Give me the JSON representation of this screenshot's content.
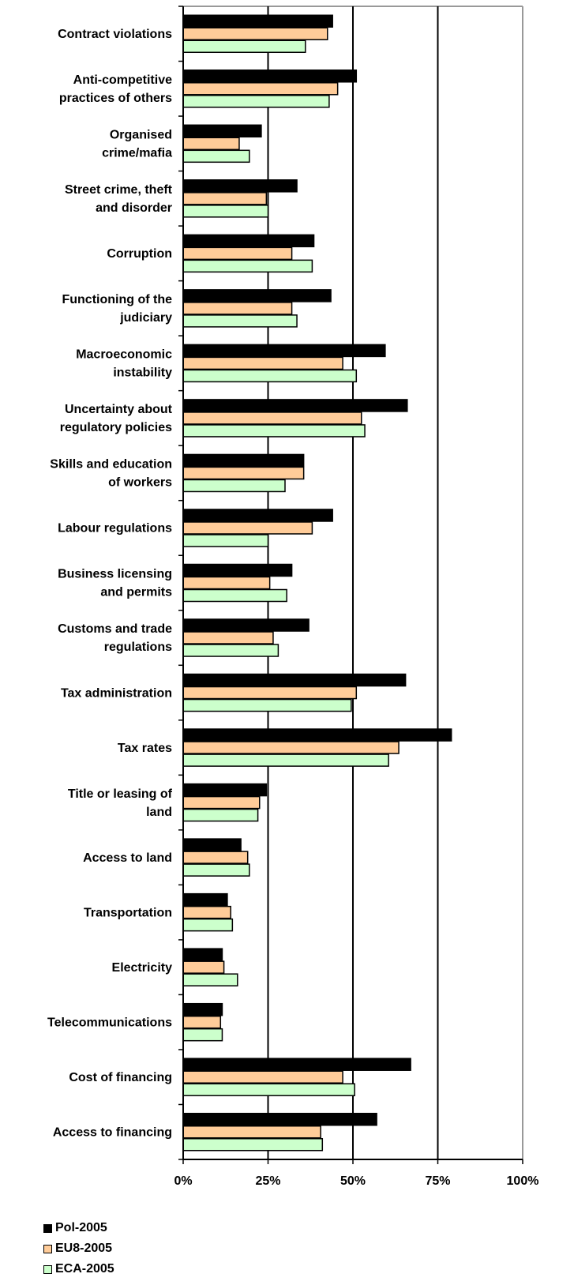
{
  "chart_data": {
    "type": "bar",
    "orientation": "horizontal",
    "categories": [
      [
        "Contract violations"
      ],
      [
        "Anti-competitive",
        "practices of others"
      ],
      [
        "Organised",
        "crime/mafia"
      ],
      [
        "Street crime, theft",
        "and disorder"
      ],
      [
        "Corruption"
      ],
      [
        "Functioning of the",
        "judiciary"
      ],
      [
        "Macroeconomic",
        "instability"
      ],
      [
        "Uncertainty about",
        "regulatory policies"
      ],
      [
        "Skills and education",
        "of workers"
      ],
      [
        "Labour regulations"
      ],
      [
        "Business licensing",
        "and permits"
      ],
      [
        "Customs and trade",
        "regulations"
      ],
      [
        "Tax administration"
      ],
      [
        "Tax rates"
      ],
      [
        "Title or leasing of",
        "land"
      ],
      [
        "Access to land"
      ],
      [
        "Transportation"
      ],
      [
        "Electricity"
      ],
      [
        "Telecommunications"
      ],
      [
        "Cost of financing"
      ],
      [
        "Access to financing"
      ]
    ],
    "series": [
      {
        "name": "Pol-2005",
        "color": "#000000",
        "values": [
          44,
          51,
          23,
          33.5,
          38.5,
          43.5,
          59.5,
          66,
          35.5,
          44,
          32,
          37,
          65.5,
          79,
          24.5,
          17,
          13,
          11.5,
          11.5,
          67,
          57
        ]
      },
      {
        "name": "EU8-2005",
        "color": "#FFCC99",
        "values": [
          42.5,
          45.5,
          16.5,
          24.5,
          32,
          32,
          47,
          52.5,
          35.5,
          38,
          25.5,
          26.5,
          51,
          63.5,
          22.5,
          19,
          14,
          12,
          11,
          47,
          40.5
        ]
      },
      {
        "name": "ECA-2005",
        "color": "#CCFFCC",
        "values": [
          36,
          43,
          19.5,
          25,
          38,
          33.5,
          51,
          53.5,
          30,
          25,
          30.5,
          28,
          49.5,
          60.5,
          22,
          19.5,
          14.5,
          16,
          11.5,
          50.5,
          41
        ]
      }
    ],
    "xlim": [
      0,
      100
    ],
    "xticks": [
      "0%",
      "25%",
      "50%",
      "75%",
      "100%"
    ],
    "grid": true,
    "legend": "bottom-left",
    "title": "",
    "xlabel": "",
    "ylabel": ""
  },
  "legend": {
    "items": [
      {
        "label": "Pol-2005",
        "color": "#000000"
      },
      {
        "label": "EU8-2005",
        "color": "#FFCC99"
      },
      {
        "label": "ECA-2005",
        "color": "#CCFFCC"
      }
    ]
  }
}
